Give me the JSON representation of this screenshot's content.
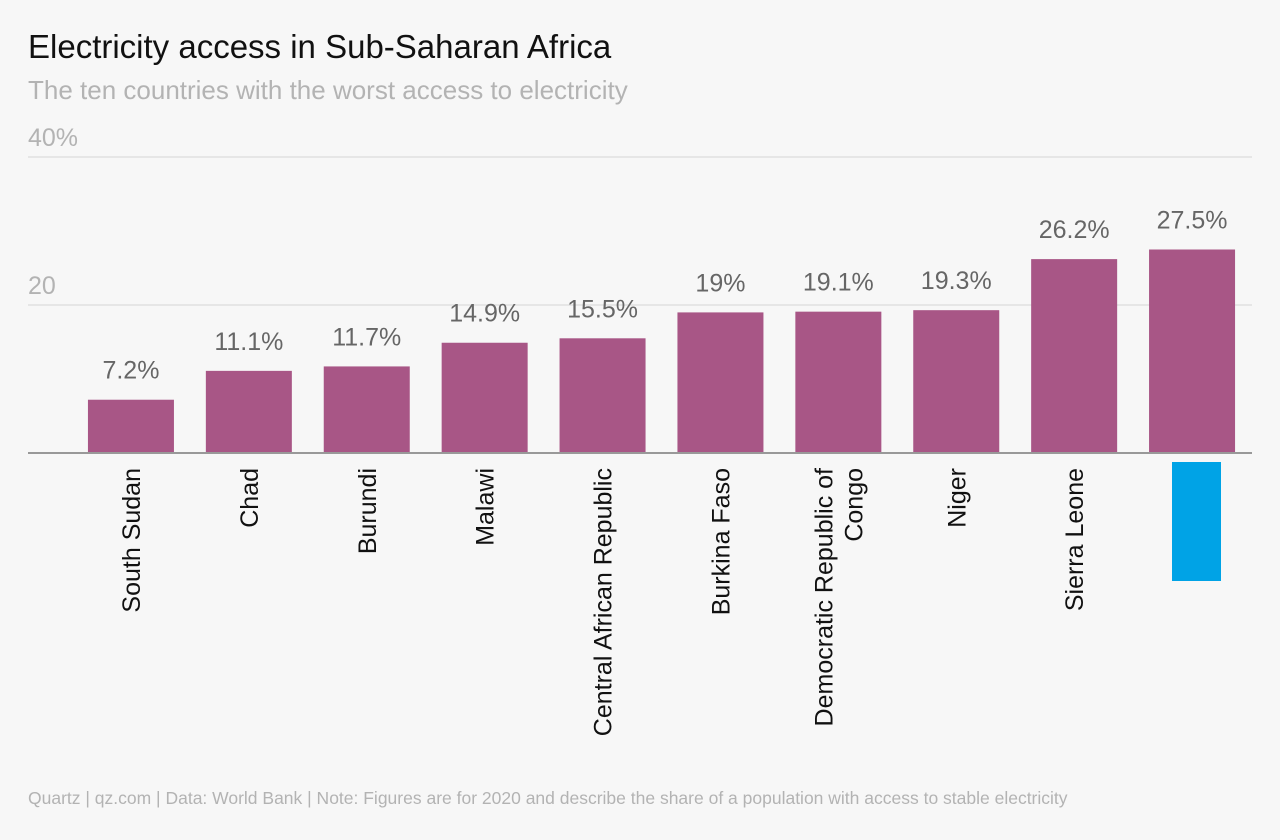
{
  "header": {
    "title": "Electricity access in Sub-Saharan Africa",
    "subtitle": "The ten countries with the worst access to electricity"
  },
  "footer": {
    "source": "Quartz | qz.com | Data: World Bank | Note: Figures are for 2020 and describe the share of a population with access to stable electricity"
  },
  "colors": {
    "bar": "#a85686",
    "highlight": "#00a3e6",
    "grid": "#e0e0e0",
    "axis": "#999999",
    "background": "#f7f7f7"
  },
  "chart_data": {
    "type": "bar",
    "title": "Electricity access in Sub-Saharan Africa",
    "subtitle": "The ten countries with the worst access to electricity",
    "categories": [
      "South Sudan",
      "Chad",
      "Burundi",
      "Malawi",
      "Central African Republic",
      "Burkina Faso",
      "Democratic Republic of Congo",
      "Niger",
      "Sierra Leone",
      ""
    ],
    "category_lines": [
      [
        "South Sudan"
      ],
      [
        "Chad"
      ],
      [
        "Burundi"
      ],
      [
        "Malawi"
      ],
      [
        "Central African Republic"
      ],
      [
        "Burkina Faso"
      ],
      [
        "Democratic Republic of",
        "Congo"
      ],
      [
        "Niger"
      ],
      [
        "Sierra Leone"
      ],
      []
    ],
    "values": [
      7.2,
      11.1,
      11.7,
      14.9,
      15.5,
      19,
      19.1,
      19.3,
      26.2,
      27.5
    ],
    "value_labels": [
      "7.2%",
      "11.1%",
      "11.7%",
      "14.9%",
      "15.5%",
      "19%",
      "19.1%",
      "19.3%",
      "26.2%",
      "27.5%"
    ],
    "highlight_index": 9,
    "ylim": [
      0,
      40
    ],
    "yticks": [
      {
        "value": 40,
        "label": "40%"
      },
      {
        "value": 20,
        "label": "20"
      }
    ],
    "grid": true,
    "xlabel": "",
    "ylabel": ""
  }
}
